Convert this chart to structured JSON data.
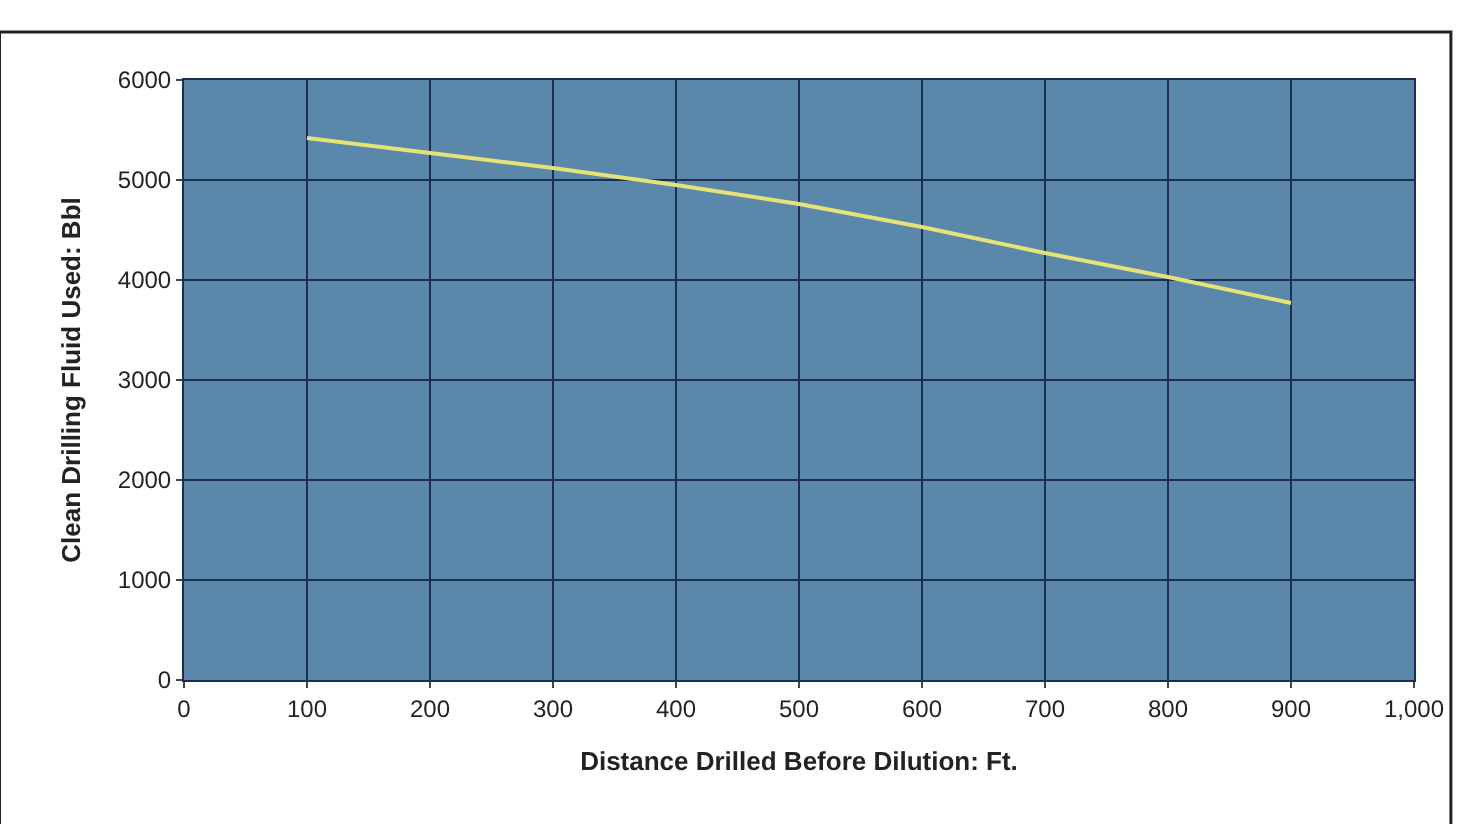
{
  "chart_data": {
    "type": "line",
    "xlabel": "Distance Drilled Before Dilution: Ft.",
    "ylabel": "Clean Drilling Fluid Used: Bbl",
    "x": [
      100,
      200,
      300,
      400,
      500,
      600,
      700,
      800,
      900
    ],
    "series": [
      {
        "color": "#e6e27a",
        "values": [
          5420,
          5270,
          5120,
          4950,
          4760,
          4530,
          4270,
          4030,
          3770
        ]
      }
    ],
    "xlim": [
      0,
      1000
    ],
    "xticks": [
      0,
      100,
      200,
      300,
      400,
      500,
      600,
      700,
      800,
      900,
      {
        "value": 1000,
        "label": "1,000"
      }
    ],
    "ylim": [
      0,
      6000
    ],
    "yticks": [
      0,
      1000,
      2000,
      3000,
      4000,
      5000,
      6000
    ],
    "grid": true,
    "legend": false,
    "marker": "none",
    "line_style": "solid"
  }
}
